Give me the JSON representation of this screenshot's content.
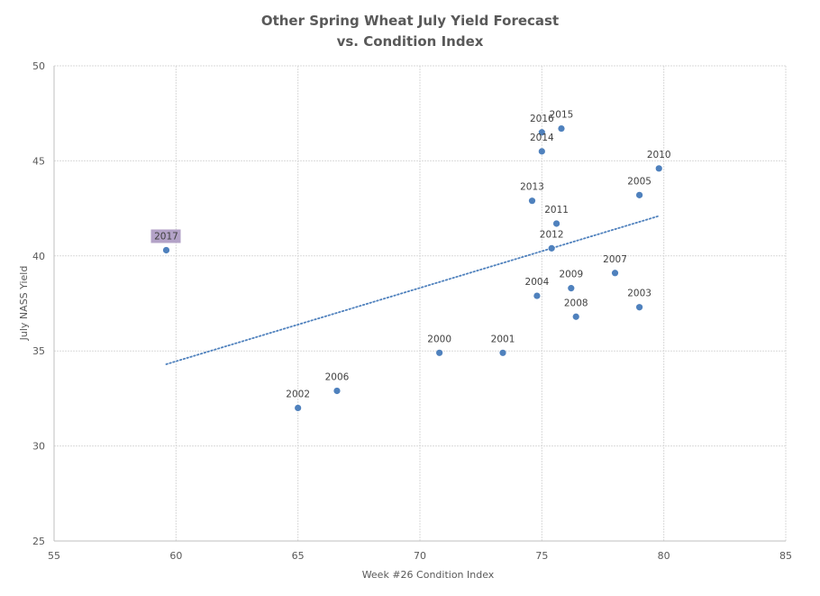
{
  "chart_data": {
    "type": "scatter",
    "title": [
      "Other Spring Wheat July Yield Forecast",
      "vs. Condition Index"
    ],
    "xlabel": "Week #26 Condition Index",
    "ylabel": "July NASS Yield",
    "xlim": [
      55,
      85
    ],
    "ylim": [
      25,
      50
    ],
    "xticks": [
      55,
      60,
      65,
      70,
      75,
      80,
      85
    ],
    "yticks": [
      25,
      30,
      35,
      40,
      45,
      50
    ],
    "grid": true,
    "marker_color": "#4f81bd",
    "highlight_color": "#b3a2c7",
    "points": [
      {
        "label": "2000",
        "x": 70.8,
        "y": 34.9
      },
      {
        "label": "2001",
        "x": 73.4,
        "y": 34.9
      },
      {
        "label": "2002",
        "x": 65.0,
        "y": 32.0
      },
      {
        "label": "2003",
        "x": 79.0,
        "y": 37.3
      },
      {
        "label": "2004",
        "x": 74.8,
        "y": 37.9
      },
      {
        "label": "2005",
        "x": 79.0,
        "y": 43.2
      },
      {
        "label": "2006",
        "x": 66.6,
        "y": 32.9
      },
      {
        "label": "2007",
        "x": 78.0,
        "y": 39.1
      },
      {
        "label": "2008",
        "x": 76.4,
        "y": 36.8
      },
      {
        "label": "2009",
        "x": 76.2,
        "y": 38.3
      },
      {
        "label": "2010",
        "x": 79.8,
        "y": 44.6
      },
      {
        "label": "2011",
        "x": 75.6,
        "y": 41.7
      },
      {
        "label": "2012",
        "x": 75.4,
        "y": 40.4
      },
      {
        "label": "2013",
        "x": 74.6,
        "y": 42.9
      },
      {
        "label": "2014",
        "x": 75.0,
        "y": 45.5
      },
      {
        "label": "2015",
        "x": 75.8,
        "y": 46.7
      },
      {
        "label": "2016",
        "x": 75.0,
        "y": 46.5
      },
      {
        "label": "2017",
        "x": 59.6,
        "y": 40.3,
        "highlight": true
      }
    ],
    "trendline": {
      "type": "linear",
      "style": "dotted",
      "color": "#4f81bd",
      "start": {
        "x": 59.6,
        "y": 34.3
      },
      "end": {
        "x": 79.8,
        "y": 42.1
      }
    }
  }
}
